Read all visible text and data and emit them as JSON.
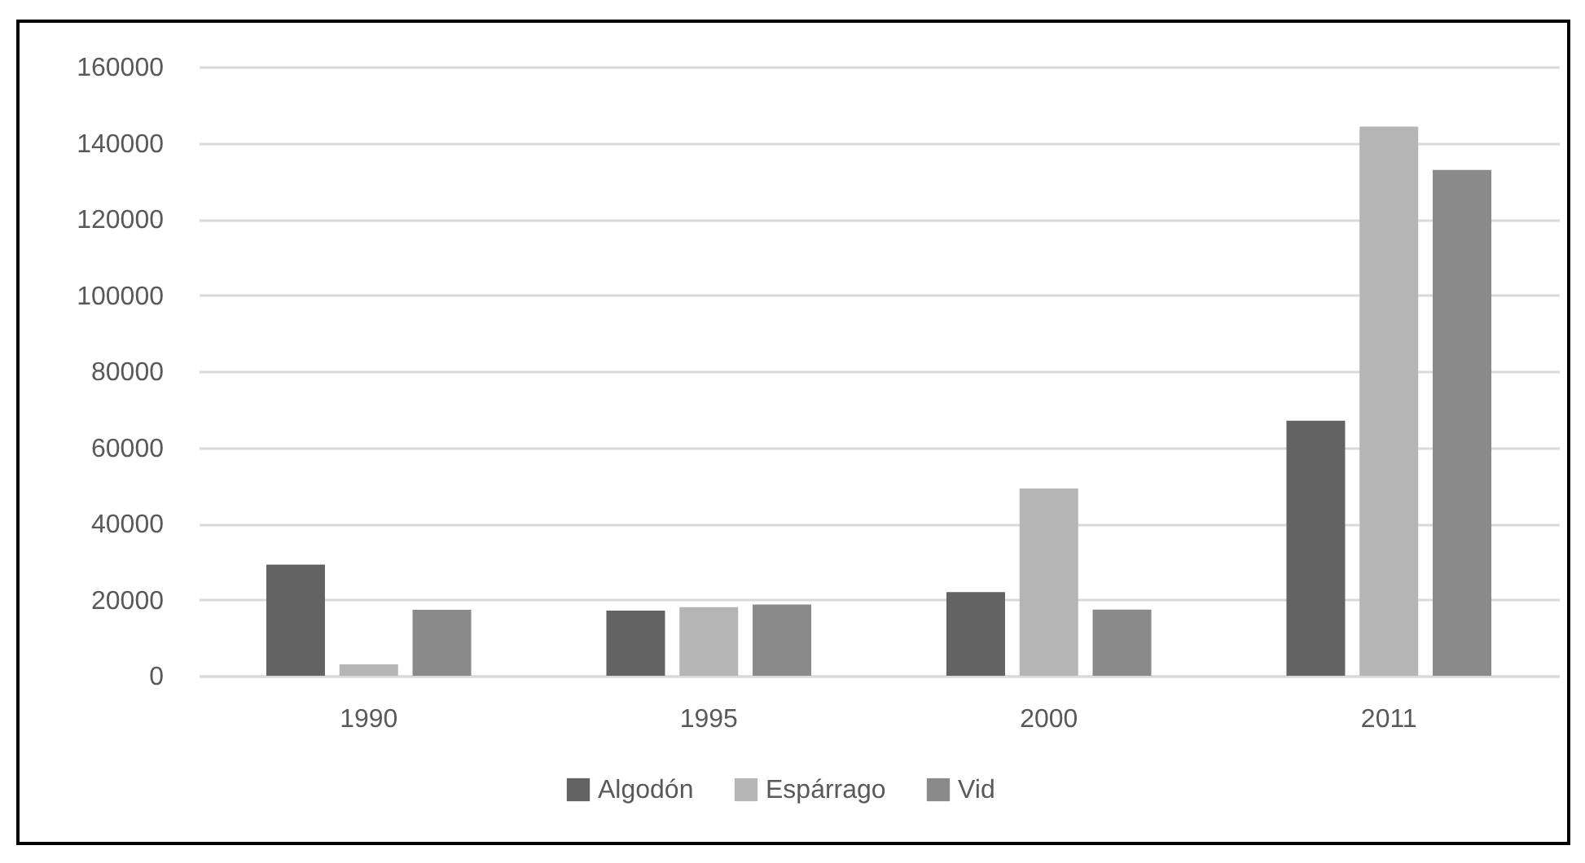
{
  "chart_data": {
    "type": "bar",
    "categories": [
      "1990",
      "1995",
      "2000",
      "2011"
    ],
    "series": [
      {
        "name": "Algodón",
        "color": "#636363",
        "values": [
          29200,
          17100,
          22000,
          67000
        ]
      },
      {
        "name": "Espárrago",
        "color": "#b5b5b5",
        "values": [
          3000,
          18000,
          49200,
          144300
        ]
      },
      {
        "name": "Vid",
        "color": "#8a8a8a",
        "values": [
          17300,
          18700,
          17400,
          132900
        ]
      }
    ],
    "ylim": [
      0,
      160000
    ],
    "yticks": [
      0,
      20000,
      40000,
      60000,
      80000,
      100000,
      120000,
      140000,
      160000
    ],
    "grid": "y",
    "legend": "bottom"
  }
}
